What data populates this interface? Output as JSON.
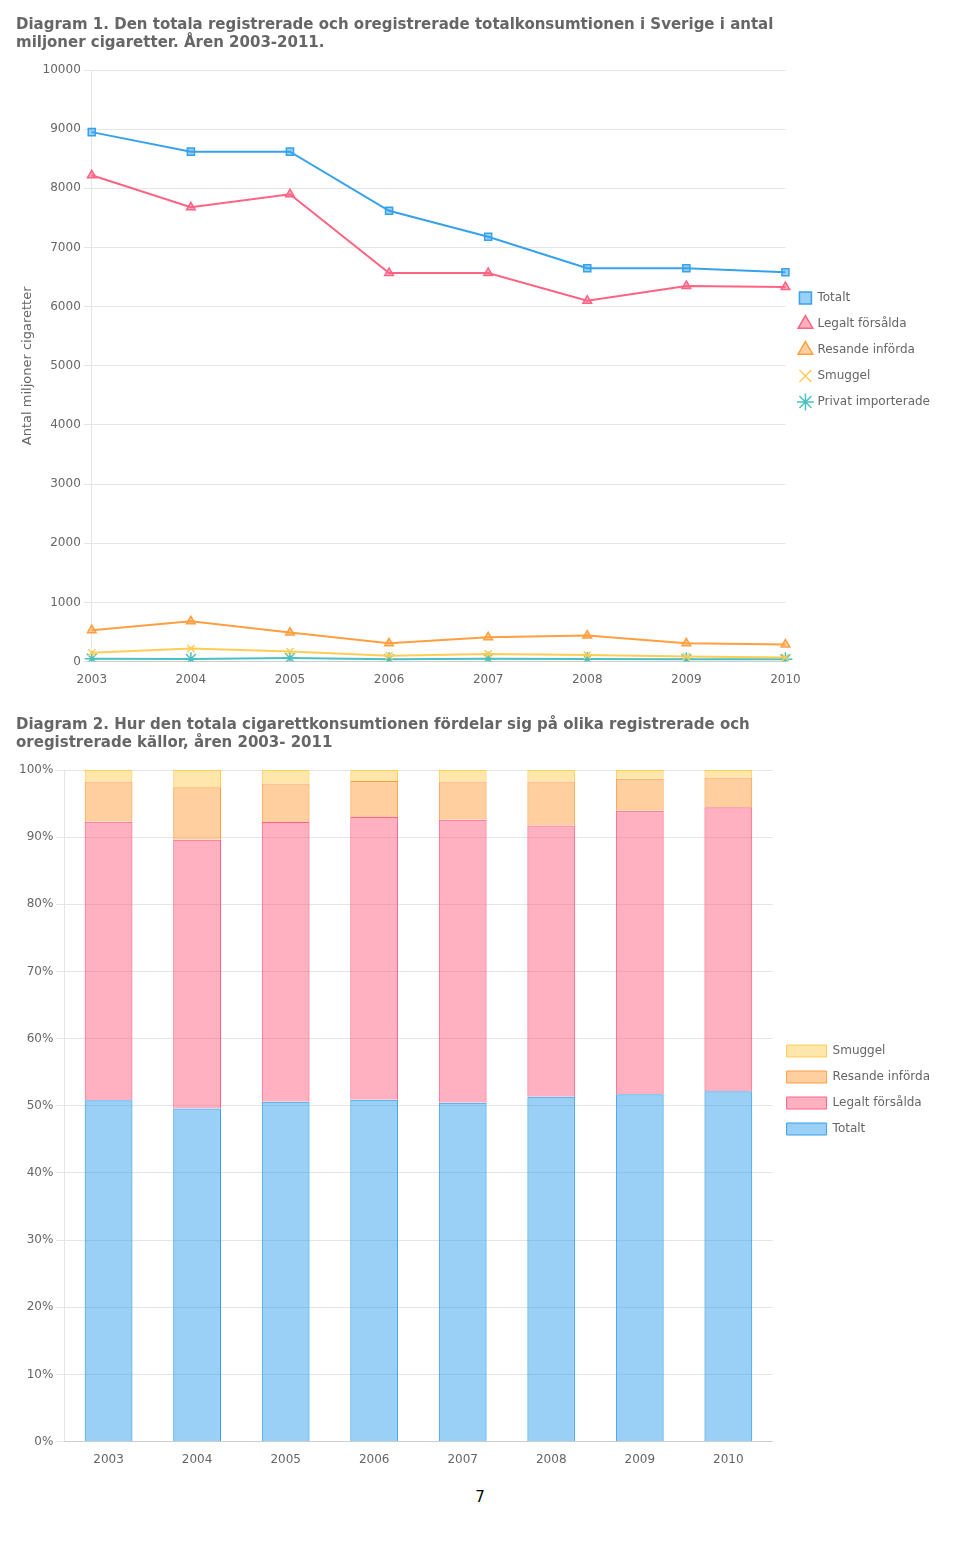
{
  "chart_data": [
    {
      "type": "line",
      "title": "Diagram 1. Den totala registrerade och oregistrerade totalkonsumtionen i Sverige i antal\nmiljoner cigaretter. Åren 2003-2011.",
      "ylabel": "Antal miljoner cigaretter",
      "categories": [
        "2003",
        "2004",
        "2005",
        "2006",
        "2007",
        "2008",
        "2009",
        "2010"
      ],
      "series": [
        {
          "name": "Totalt",
          "marker": "square",
          "values": [
            8950,
            8620,
            8620,
            7620,
            7180,
            6650,
            6650,
            6580
          ]
        },
        {
          "name": "Legalt försålda",
          "marker": "triangle",
          "values": [
            8220,
            7680,
            7900,
            6570,
            6570,
            6100,
            6350,
            6330
          ]
        },
        {
          "name": "Resande införda",
          "marker": "triangle",
          "values": [
            530,
            680,
            490,
            310,
            410,
            440,
            310,
            290
          ]
        },
        {
          "name": "Smuggel",
          "marker": "x",
          "values": [
            150,
            220,
            170,
            100,
            130,
            110,
            85,
            70
          ]
        },
        {
          "name": "Privat importerade",
          "marker": "star",
          "values": [
            50,
            45,
            60,
            40,
            50,
            45,
            40,
            40
          ]
        }
      ],
      "ylim": [
        0,
        10000
      ],
      "yticks": [
        0,
        1000,
        2000,
        3000,
        4000,
        5000,
        6000,
        7000,
        8000,
        9000,
        10000
      ],
      "grid": "y",
      "legend": "right"
    },
    {
      "type": "bar",
      "stacked": true,
      "title": "Diagram 2. Hur den totala cigarettkonsumtionen fördelar sig på olika registrerade och\noregistrerade källor, åren 2003- 2011",
      "categories": [
        "2003",
        "2004",
        "2005",
        "2006",
        "2007",
        "2008",
        "2009",
        "2010"
      ],
      "series": [
        {
          "name": "Totalt",
          "values": [
            50.813,
            49.605,
            50.602,
            50.913,
            50.451,
            51.346,
            51.717,
            52.165
          ]
        },
        {
          "name": "Legalt försålda",
          "values": [
            41.463,
            40.02,
            41.667,
            42.089,
            42.126,
            40.379,
            42.222,
            42.296
          ]
        },
        {
          "name": "Resande införda",
          "values": [
            5.996,
            7.806,
            5.723,
            5.375,
            5.717,
            6.58,
            4.747,
            4.431
          ]
        },
        {
          "name": "Smuggel",
          "values": [
            1.728,
            2.569,
            2.008,
            1.623,
            1.705,
            1.695,
            1.313,
            1.108
          ]
        }
      ],
      "ylim": [
        0,
        100
      ],
      "yticks": [
        {
          "value": 0,
          "label": "0%"
        },
        {
          "value": 10,
          "label": "10%"
        },
        {
          "value": 20,
          "label": "20%"
        },
        {
          "value": 30,
          "label": "30%"
        },
        {
          "value": 40,
          "label": "40%"
        },
        {
          "value": 50,
          "label": "50%"
        },
        {
          "value": 60,
          "label": "60%"
        },
        {
          "value": 70,
          "label": "70%"
        },
        {
          "value": 80,
          "label": "80%"
        },
        {
          "value": 90,
          "label": "90%"
        },
        {
          "value": 100,
          "label": "100%"
        }
      ],
      "grid": "y",
      "legend": "right",
      "annotation": "7"
    }
  ]
}
